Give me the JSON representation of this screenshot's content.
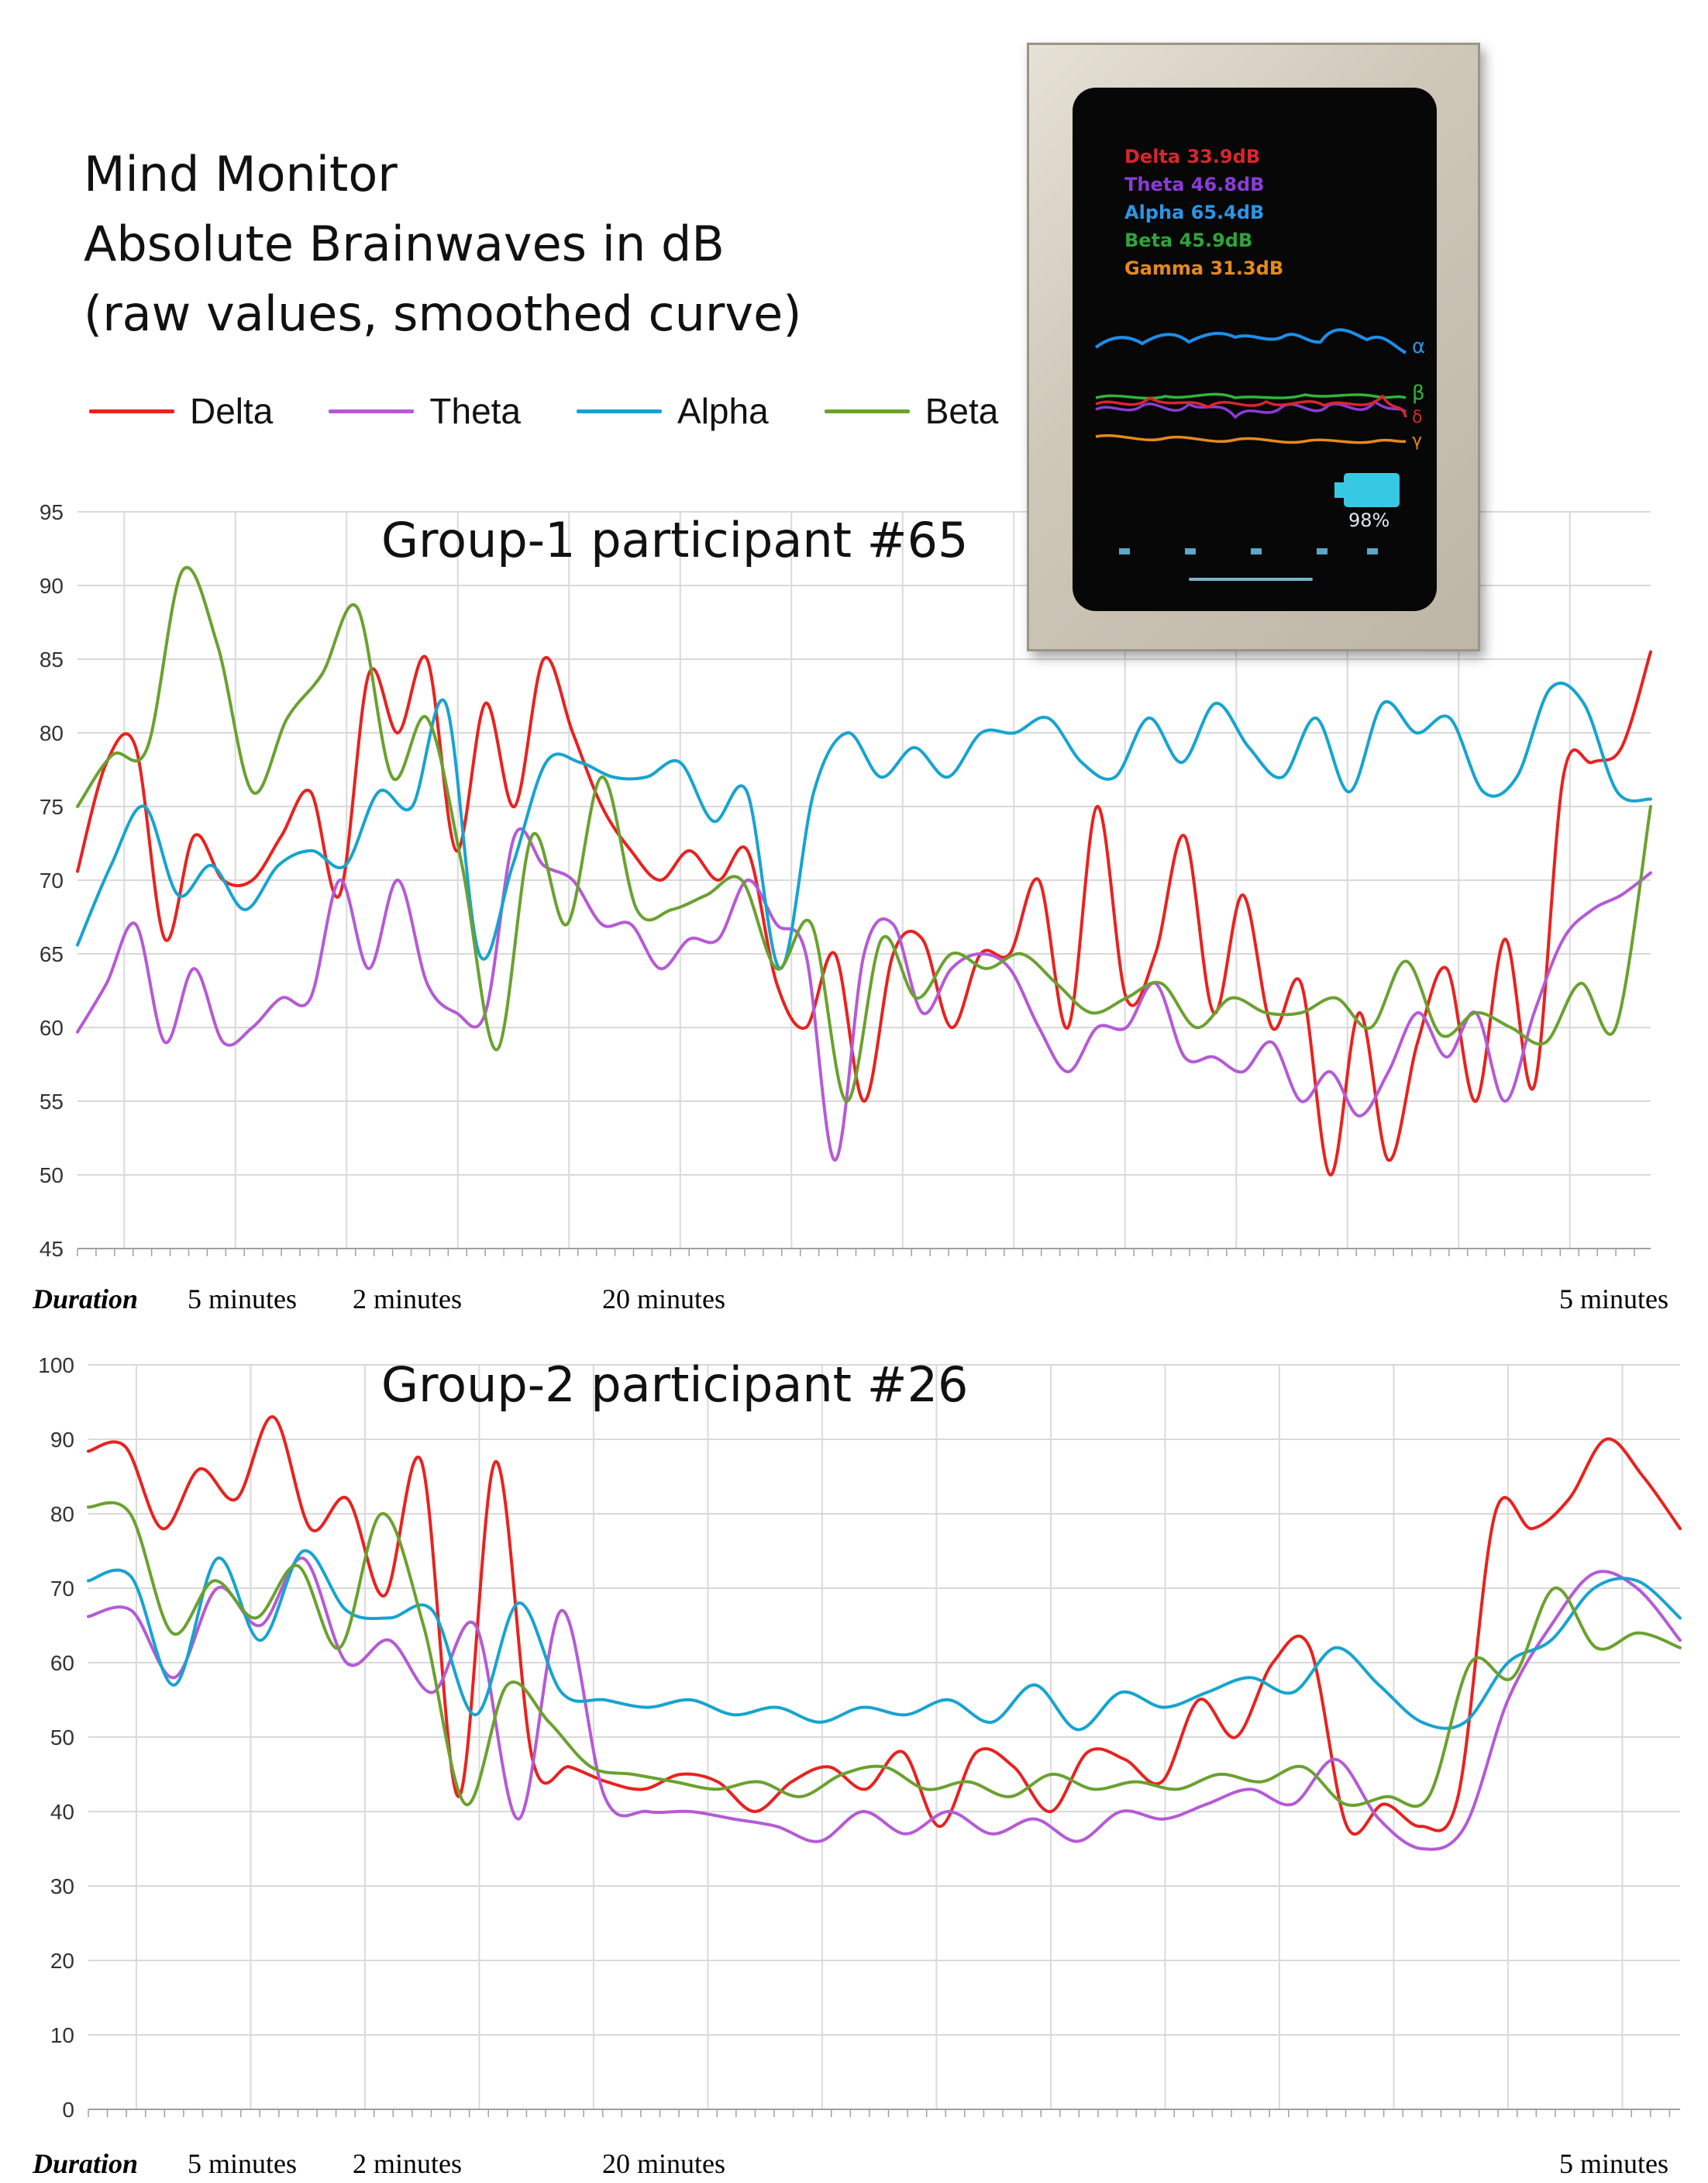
{
  "header": {
    "line1": "Mind Monitor",
    "line2": "Absolute Brainwaves in dB",
    "line3": "(raw values, smoothed curve)"
  },
  "legend": [
    {
      "name": "Delta",
      "color": "#e8221f"
    },
    {
      "name": "Theta",
      "color": "#b55ad6"
    },
    {
      "name": "Alpha",
      "color": "#16a4cf"
    },
    {
      "name": "Beta",
      "color": "#6aa12f"
    }
  ],
  "device": {
    "metrics": [
      {
        "text": "Delta 33.9dB",
        "color": "#d8262d"
      },
      {
        "text": "Theta 46.8dB",
        "color": "#8b3bd6"
      },
      {
        "text": "Alpha 65.4dB",
        "color": "#2a95e8"
      },
      {
        "text": "Beta 45.9dB",
        "color": "#2fa43a"
      },
      {
        "text": "Gamma 31.3dB",
        "color": "#e68a1c"
      }
    ],
    "wave_labels": [
      "α",
      "β",
      "δ",
      "γ"
    ],
    "battery": "98%"
  },
  "duration": {
    "label": "Duration",
    "segments": [
      "5 minutes",
      "2 minutes",
      "20 minutes",
      "5 minutes"
    ]
  },
  "chart_data": [
    {
      "type": "line",
      "title": "Group-1 participant #65",
      "xlabel": "Duration",
      "ylim": [
        45,
        95
      ],
      "yticks": [
        45,
        50,
        55,
        60,
        65,
        70,
        75,
        80,
        85,
        90,
        95
      ],
      "grid": true,
      "series": [
        {
          "name": "Delta",
          "values": [
            70.6,
            78,
            79,
            66,
            73,
            70,
            70,
            73,
            76,
            69,
            84,
            80,
            85,
            72,
            82,
            75,
            85,
            80,
            75,
            72,
            70,
            72,
            70,
            72,
            63,
            60,
            65,
            55,
            65,
            66,
            60,
            65,
            65,
            70,
            60,
            75,
            62,
            65,
            73,
            61,
            69,
            60,
            63,
            50,
            61,
            51,
            59,
            64,
            55,
            66,
            56,
            77,
            78,
            79,
            85.5
          ]
        },
        {
          "name": "Theta",
          "values": [
            59.7,
            63,
            67,
            59,
            64,
            59,
            60,
            62,
            62,
            70,
            64,
            70,
            63,
            61,
            61,
            73,
            71,
            70,
            67,
            67,
            64,
            66,
            66,
            70,
            67,
            65,
            51,
            65,
            67,
            61,
            64,
            65,
            64,
            60,
            57,
            60,
            60,
            63,
            58,
            58,
            57,
            59,
            55,
            57,
            54,
            57,
            61,
            58,
            61,
            55,
            61,
            66,
            68,
            69,
            70.5
          ]
        },
        {
          "name": "Alpha",
          "values": [
            65.6,
            71,
            75,
            69,
            71,
            68,
            71,
            72,
            71,
            76,
            75,
            82,
            65,
            71,
            78,
            78,
            77,
            77,
            78,
            74,
            76,
            64,
            76,
            80,
            77,
            79,
            77,
            80,
            80,
            81,
            78,
            77,
            81,
            78,
            82,
            79,
            77,
            81,
            76,
            82,
            80,
            81,
            76,
            77,
            83,
            82,
            76,
            75.5
          ]
        },
        {
          "name": "Beta",
          "values": [
            75,
            78.5,
            79,
            91,
            86,
            76,
            81,
            84,
            88.5,
            77,
            81,
            71,
            58.5,
            73,
            67,
            77,
            68,
            68,
            69,
            70,
            64,
            67,
            55,
            66,
            62,
            65,
            64,
            65,
            63,
            61,
            62,
            63,
            60,
            62,
            61,
            61,
            62,
            60,
            64.5,
            59.5,
            61,
            60,
            59,
            63,
            60,
            75
          ]
        }
      ]
    },
    {
      "type": "line",
      "title": "Group-2 participant #26",
      "xlabel": "Duration",
      "ylim": [
        0,
        100
      ],
      "yticks": [
        0,
        10,
        20,
        30,
        40,
        50,
        60,
        70,
        80,
        90,
        100
      ],
      "grid": true,
      "series": [
        {
          "name": "Delta",
          "values": [
            88.4,
            89,
            78,
            86,
            82,
            93,
            78,
            82,
            69,
            87,
            42,
            87,
            47,
            46,
            44,
            43,
            45,
            44,
            40,
            44,
            46,
            43,
            48,
            38,
            48,
            46,
            40,
            48,
            47,
            44,
            55,
            50,
            60,
            62,
            38,
            41,
            38,
            42,
            80,
            78,
            82,
            90,
            85,
            78
          ]
        },
        {
          "name": "Theta",
          "values": [
            66.2,
            67,
            58,
            70,
            65,
            74,
            60,
            63,
            56,
            65,
            39,
            67,
            42,
            40,
            40,
            39,
            38,
            36,
            40,
            37,
            40,
            37,
            39,
            36,
            40,
            39,
            41,
            43,
            41,
            47,
            39,
            35,
            38,
            55,
            65,
            72,
            70,
            63
          ]
        },
        {
          "name": "Alpha",
          "values": [
            71,
            71.5,
            57,
            74,
            63,
            75,
            67,
            66,
            67,
            53,
            68,
            56,
            55,
            54,
            55,
            53,
            54,
            52,
            54,
            53,
            55,
            52,
            57,
            51,
            56,
            54,
            56,
            58,
            56,
            62,
            57,
            52,
            52,
            60,
            63,
            70,
            71,
            66
          ]
        },
        {
          "name": "Beta",
          "values": [
            80.9,
            80,
            64,
            71,
            66,
            73,
            62,
            80,
            65,
            41,
            57,
            52,
            46,
            45,
            44,
            43,
            44,
            42,
            45,
            46,
            43,
            44,
            42,
            45,
            43,
            44,
            43,
            45,
            44,
            46,
            41,
            42,
            42,
            60,
            58,
            70,
            62,
            64,
            62
          ]
        }
      ]
    }
  ]
}
